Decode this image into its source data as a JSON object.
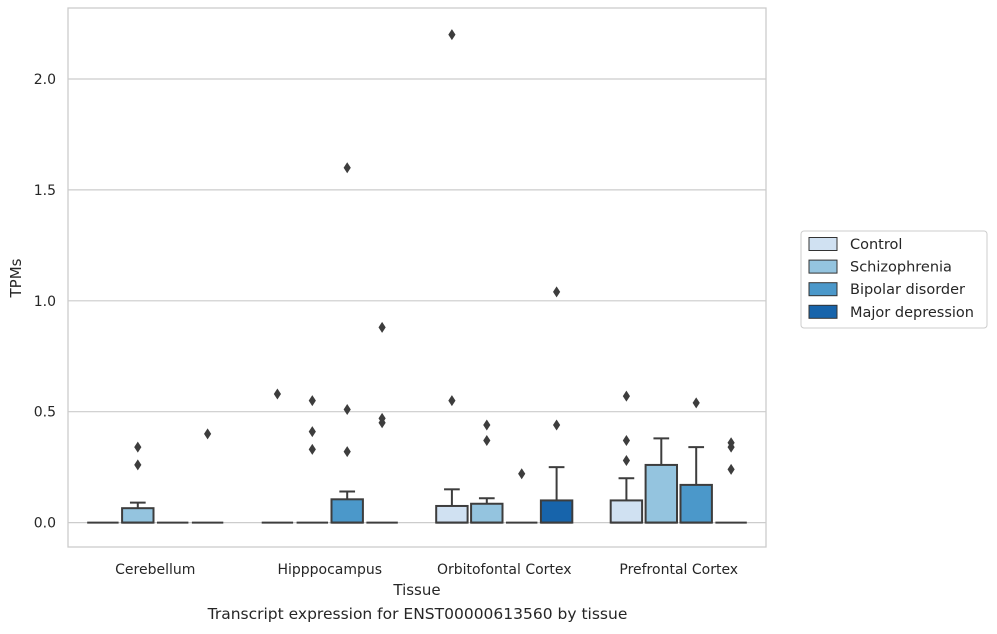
{
  "caption": "Transcript expression for ENST00000613560 by tissue",
  "chart_data": {
    "type": "box",
    "xlabel": "Tissue",
    "ylabel": "TPMs",
    "ylim": [
      -0.11,
      2.32
    ],
    "yticks": [
      0.0,
      0.5,
      1.0,
      1.5,
      2.0
    ],
    "ytick_labels": [
      "0.0",
      "0.5",
      "1.0",
      "1.5",
      "2.0"
    ],
    "grid": "horizontal",
    "legend_position": "right",
    "categories": [
      "Cerebellum",
      "Hipppocampus",
      "Orbitofontal Cortex",
      "Prefrontal Cortex"
    ],
    "series": [
      {
        "name": "Control",
        "color": "#d0e1f2",
        "boxes": [
          {
            "q1": 0,
            "q3": 0,
            "median": 0,
            "whisker_low": 0,
            "whisker_high": 0,
            "outliers": []
          },
          {
            "q1": 0,
            "q3": 0,
            "median": 0,
            "whisker_low": 0,
            "whisker_high": 0,
            "outliers": [
              0.58
            ]
          },
          {
            "q1": 0,
            "q3": 0.075,
            "median": 0,
            "whisker_low": 0,
            "whisker_high": 0.15,
            "outliers": [
              0.55,
              2.2
            ]
          },
          {
            "q1": 0,
            "q3": 0.1,
            "median": 0,
            "whisker_low": 0,
            "whisker_high": 0.2,
            "outliers": [
              0.28,
              0.37,
              0.57
            ]
          }
        ]
      },
      {
        "name": "Schizophrenia",
        "color": "#94c4df",
        "boxes": [
          {
            "q1": 0,
            "q3": 0.065,
            "median": 0,
            "whisker_low": 0,
            "whisker_high": 0.09,
            "outliers": [
              0.26,
              0.34
            ]
          },
          {
            "q1": 0,
            "q3": 0,
            "median": 0,
            "whisker_low": 0,
            "whisker_high": 0,
            "outliers": [
              0.33,
              0.41,
              0.55
            ]
          },
          {
            "q1": 0,
            "q3": 0.085,
            "median": 0,
            "whisker_low": 0,
            "whisker_high": 0.11,
            "outliers": [
              0.37,
              0.44
            ]
          },
          {
            "q1": 0,
            "q3": 0.26,
            "median": 0,
            "whisker_low": 0,
            "whisker_high": 0.38,
            "outliers": []
          }
        ]
      },
      {
        "name": "Bipolar disorder",
        "color": "#4b98ca",
        "boxes": [
          {
            "q1": 0,
            "q3": 0,
            "median": 0,
            "whisker_low": 0,
            "whisker_high": 0,
            "outliers": []
          },
          {
            "q1": 0,
            "q3": 0.105,
            "median": 0,
            "whisker_low": 0,
            "whisker_high": 0.14,
            "outliers": [
              0.32,
              0.51,
              1.6
            ]
          },
          {
            "q1": 0,
            "q3": 0,
            "median": 0,
            "whisker_low": 0,
            "whisker_high": 0,
            "outliers": [
              0.22
            ]
          },
          {
            "q1": 0,
            "q3": 0.17,
            "median": 0,
            "whisker_low": 0,
            "whisker_high": 0.34,
            "outliers": [
              0.54
            ]
          }
        ]
      },
      {
        "name": "Major depression",
        "color": "#1764ab",
        "boxes": [
          {
            "q1": 0,
            "q3": 0,
            "median": 0,
            "whisker_low": 0,
            "whisker_high": 0,
            "outliers": [
              0.4
            ]
          },
          {
            "q1": 0,
            "q3": 0,
            "median": 0,
            "whisker_low": 0,
            "whisker_high": 0,
            "outliers": [
              0.45,
              0.47,
              0.88
            ]
          },
          {
            "q1": 0,
            "q3": 0.1,
            "median": 0,
            "whisker_low": 0,
            "whisker_high": 0.25,
            "outliers": [
              0.44,
              1.04
            ]
          },
          {
            "q1": 0,
            "q3": 0,
            "median": 0,
            "whisker_low": 0,
            "whisker_high": 0,
            "outliers": [
              0.24,
              0.34,
              0.36
            ]
          }
        ]
      }
    ]
  }
}
